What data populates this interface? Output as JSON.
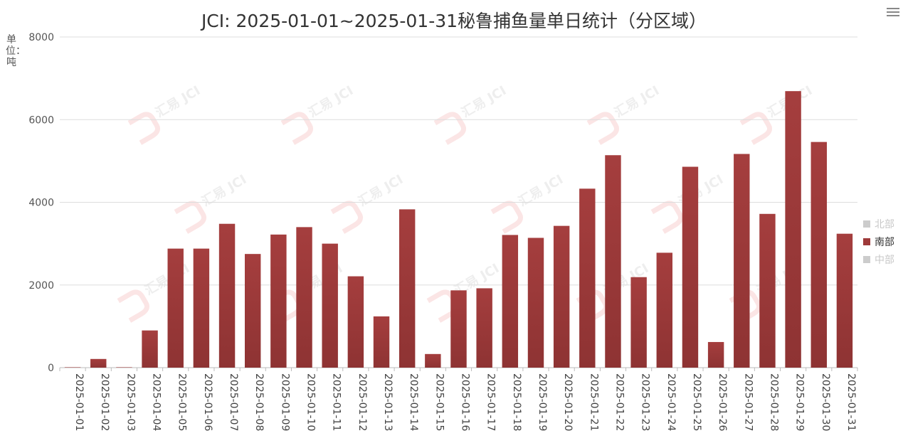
{
  "header": {
    "title": "JCI: 2025-01-01~2025-01-31秘鲁捕鱼量单日统计（分区域）"
  },
  "unit_label": "单位：吨",
  "watermark_text": "汇易 JCI",
  "legend": {
    "items": [
      {
        "label": "北部",
        "active": false,
        "color": "#cccccc"
      },
      {
        "label": "南部",
        "active": true,
        "color": "#9e3a3a"
      },
      {
        "label": "中部",
        "active": false,
        "color": "#cccccc"
      }
    ]
  },
  "chart_data": {
    "type": "bar",
    "title": "JCI: 2025-01-01~2025-01-31秘鲁捕鱼量单日统计（分区域）",
    "ylabel": "单位：吨",
    "xlabel": "",
    "ylim": [
      0,
      8000
    ],
    "yticks": [
      0,
      2000,
      4000,
      6000,
      8000
    ],
    "grid": true,
    "legend_position": "right",
    "categories": [
      "2025-01-01",
      "2025-01-02",
      "2025-01-03",
      "2025-01-04",
      "2025-01-05",
      "2025-01-06",
      "2025-01-07",
      "2025-01-08",
      "2025-01-09",
      "2025-01-10",
      "2025-01-11",
      "2025-01-12",
      "2025-01-13",
      "2025-01-14",
      "2025-01-15",
      "2025-01-16",
      "2025-01-17",
      "2025-01-18",
      "2025-01-19",
      "2025-01-20",
      "2025-01-21",
      "2025-01-22",
      "2025-01-23",
      "2025-01-24",
      "2025-01-25",
      "2025-01-26",
      "2025-01-27",
      "2025-01-28",
      "2025-01-29",
      "2025-01-30",
      "2025-01-31"
    ],
    "series": [
      {
        "name": "南部",
        "color": "#9e3a3a",
        "values": [
          10,
          210,
          10,
          900,
          2880,
          2880,
          3480,
          2750,
          3220,
          3400,
          3000,
          2210,
          1240,
          3830,
          330,
          1870,
          1920,
          3210,
          3140,
          3430,
          4330,
          5140,
          2190,
          2780,
          4860,
          620,
          5170,
          3720,
          6690,
          5460,
          3240
        ]
      }
    ]
  }
}
